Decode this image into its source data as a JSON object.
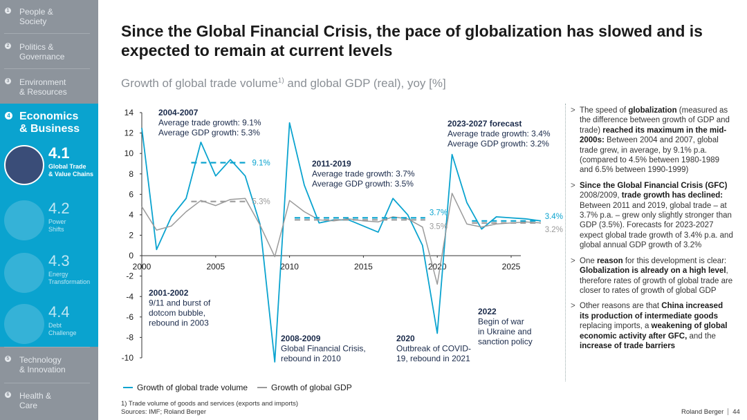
{
  "sidebar": {
    "items_top": [
      {
        "num": "1",
        "label": "People &\nSociety"
      },
      {
        "num": "2",
        "label": "Politics &\nGovernance"
      },
      {
        "num": "3",
        "label": "Environment\n& Resources"
      }
    ],
    "active": {
      "num": "4",
      "label": "Economics\n& Business"
    },
    "subitems": [
      {
        "num": "4.1",
        "label": "Global Trade\n& Value Chains"
      },
      {
        "num": "4.2",
        "label": "Power\nShifts"
      },
      {
        "num": "4.3",
        "label": "Energy\nTransformation"
      },
      {
        "num": "4.4",
        "label": "Debt\nChallenge"
      }
    ],
    "items_bottom": [
      {
        "num": "5",
        "label": "Technology\n& Innovation"
      },
      {
        "num": "6",
        "label": "Health &\nCare"
      }
    ]
  },
  "title": "Since the Global Financial Crisis, the pace of globalization has slowed and is expected to remain at current levels",
  "subtitle": {
    "text": "Growth of global trade volume",
    "sup": "1)",
    "rest": " and global GDP (real), yoy [%]"
  },
  "colors": {
    "trade": "#0aa3cf",
    "gdp": "#9a9a9a",
    "accent": "#0aa3cf",
    "sidebar": "#8d949c"
  },
  "chart_data": {
    "type": "line",
    "title": "Growth of global trade volume and global GDP (real), yoy [%]",
    "xlim": [
      2000,
      2027
    ],
    "ylim": [
      -10,
      14
    ],
    "xticks": [
      2000,
      2005,
      2010,
      2015,
      2020,
      2025
    ],
    "yticks": [
      14,
      12,
      10,
      8,
      6,
      4,
      2,
      0,
      -2,
      -4,
      -6,
      -8,
      -10
    ],
    "x": [
      2000,
      2001,
      2002,
      2003,
      2004,
      2005,
      2006,
      2007,
      2008,
      2009,
      2010,
      2011,
      2012,
      2013,
      2014,
      2015,
      2016,
      2017,
      2018,
      2019,
      2020,
      2021,
      2022,
      2023,
      2024,
      2025,
      2026,
      2027
    ],
    "series": [
      {
        "name": "Growth of global trade volume",
        "values": [
          12.5,
          0.6,
          3.8,
          5.6,
          11.1,
          7.8,
          9.4,
          7.8,
          3.1,
          -10.4,
          13.0,
          6.9,
          3.2,
          3.5,
          3.5,
          2.9,
          2.3,
          5.6,
          4.0,
          1.0,
          -7.6,
          9.9,
          5.2,
          2.6,
          3.8,
          3.7,
          3.6,
          3.4
        ]
      },
      {
        "name": "Growth of global GDP",
        "values": [
          4.8,
          2.5,
          2.9,
          4.3,
          5.4,
          4.9,
          5.5,
          5.6,
          3.0,
          -0.1,
          5.4,
          4.3,
          3.5,
          3.4,
          3.6,
          3.4,
          3.3,
          3.8,
          3.6,
          2.8,
          -2.8,
          6.1,
          3.1,
          2.8,
          3.1,
          3.2,
          3.3,
          3.2
        ]
      }
    ],
    "averages": [
      {
        "series": 0,
        "from": 2004,
        "to": 2007,
        "value": 9.1,
        "label": "9.1%"
      },
      {
        "series": 1,
        "from": 2004,
        "to": 2007,
        "value": 5.3,
        "label": "5.3%"
      },
      {
        "series": 0,
        "from": 2011,
        "to": 2019,
        "value": 3.7,
        "label": "3.7%"
      },
      {
        "series": 1,
        "from": 2011,
        "to": 2019,
        "value": 3.5,
        "label": "3.5%"
      },
      {
        "series": 0,
        "from": 2023,
        "to": 2027,
        "value": 3.4,
        "label": "3.4%"
      },
      {
        "series": 1,
        "from": 2023,
        "to": 2027,
        "value": 3.2,
        "label": "3.2%"
      }
    ],
    "annotations": [
      {
        "head": "2004-2007",
        "lines": [
          "Average trade growth: 9.1%",
          "Average GDP growth: 5.3%"
        ]
      },
      {
        "head": "2011-2019",
        "lines": [
          "Average trade growth: 3.7%",
          "Average GDP growth: 3.5%"
        ]
      },
      {
        "head": "2023-2027 forecast",
        "lines": [
          "Average trade growth: 3.4%",
          "Average GDP growth: 3.2%"
        ]
      },
      {
        "head": "2001-2002",
        "lines": [
          "9/11 and burst of",
          "dotcom bubble,",
          "rebound in 2003"
        ]
      },
      {
        "head": "2008-2009",
        "lines": [
          "Global Financial Crisis,",
          "rebound in 2010"
        ]
      },
      {
        "head": "2020",
        "lines": [
          "Outbreak of COVID-",
          "19, rebound in 2021"
        ]
      },
      {
        "head": "2022",
        "lines": [
          "Begin of war",
          "in Ukraine and",
          "sanction policy"
        ]
      }
    ],
    "legend": [
      "Growth of global trade volume",
      "Growth of global GDP"
    ]
  },
  "bullets": [
    [
      {
        "t": "The speed of "
      },
      {
        "b": "globalization"
      },
      {
        "t": " (measured as the difference between growth of GDP and trade) "
      },
      {
        "b": "reached its maximum in the mid-2000s:"
      },
      {
        "t": " Between 2004 and 2007, global trade grew, in average, by 9.1% p.a. (compared to 4.5% between 1980-1989 and 6.5% between 1990-1999)"
      }
    ],
    [
      {
        "b": "Since the Global Financial Crisis (GFC)"
      },
      {
        "t": " 2008/2009, "
      },
      {
        "b": "trade growth has declined:"
      },
      {
        "t": " Between 2011 and 2019, global trade – at 3.7% p.a. – grew only slightly stronger than GDP (3.5%). Forecasts for 2023-2027 expect global trade growth of 3.4% p.a. and global annual GDP growth of 3.2%"
      }
    ],
    [
      {
        "t": "One "
      },
      {
        "b": "reason"
      },
      {
        "t": " for this development is clear: "
      },
      {
        "b": "Globalization is already on a high level"
      },
      {
        "t": ", therefore rates of growth of global trade are closer to rates of growth of global GDP"
      }
    ],
    [
      {
        "t": "Other reasons are that "
      },
      {
        "b": "China increased its production of intermediate goods"
      },
      {
        "t": " replacing imports, a "
      },
      {
        "b": "weakening of global economic activity after GFC,"
      },
      {
        "t": " and the "
      },
      {
        "b": "increase of trade barriers"
      }
    ]
  ],
  "footnote": [
    "1) Trade volume of goods and services (exports and imports)",
    "Sources: IMF; Roland Berger"
  ],
  "brand": {
    "name": "Roland Berger",
    "page": "44"
  }
}
